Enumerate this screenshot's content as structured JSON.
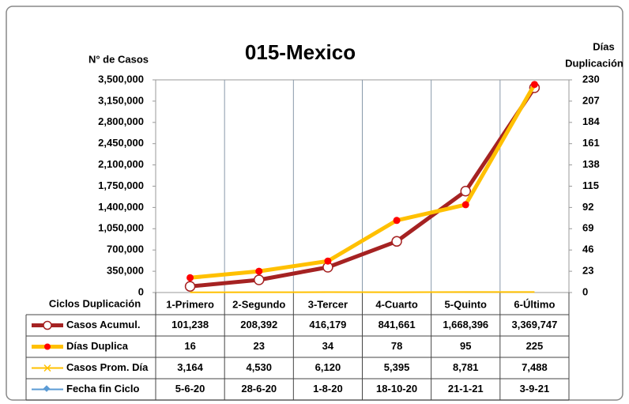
{
  "chart_data": {
    "type": "line",
    "title": "015-Mexico",
    "y_label": "N° de Casos",
    "y2_label": [
      "Días",
      "Duplicación"
    ],
    "table_header": "Ciclos Duplicación",
    "categories": [
      "1-Primero",
      "2-Segundo",
      "3-Tercer",
      "4-Cuarto",
      "5-Quinto",
      "6-Último"
    ],
    "ylim": [
      0,
      3500000
    ],
    "yticks": [
      0,
      {
        "value": 350000,
        "label": "350,000"
      },
      {
        "value": 700000,
        "label": "700,000"
      },
      {
        "value": 1050000,
        "label": "1,050,000"
      },
      {
        "value": 1400000,
        "label": "1,400,000"
      },
      {
        "value": 1750000,
        "label": "1,750,000"
      },
      {
        "value": 2100000,
        "label": "2,100,000"
      },
      {
        "value": 2450000,
        "label": "2,450,000"
      },
      {
        "value": 2800000,
        "label": "2,800,000"
      },
      {
        "value": 3150000,
        "label": "3,150,000"
      },
      {
        "value": 3500000,
        "label": "3,500,000"
      }
    ],
    "y2lim": [
      0,
      230
    ],
    "y2ticks": [
      0,
      23,
      46,
      69,
      92,
      115,
      138,
      161,
      184,
      207,
      230
    ],
    "series": [
      {
        "name": "Casos Acumul.",
        "color": "#a52222",
        "values": [
          101238,
          208392,
          416179,
          841661,
          1668396,
          3369747
        ],
        "value_labels": [
          "101,238",
          "208,392",
          "416,179",
          "841,661",
          "1,668,396",
          "3,369,747"
        ]
      },
      {
        "name": "Días Duplica",
        "color": "#ffc000",
        "axis": "y2",
        "values": [
          16,
          23,
          34,
          78,
          95,
          225
        ]
      },
      {
        "name": "Casos Prom. Día",
        "color": "#ffc000",
        "values": [
          3164,
          4530,
          6120,
          5395,
          8781,
          7488
        ],
        "value_labels": [
          "3,164",
          "4,530",
          "6,120",
          "5,395",
          "8,781",
          "7,488"
        ]
      },
      {
        "name": "Fecha fin Ciclo",
        "color": "#5b9bd5",
        "values": [
          "5-6-20",
          "28-6-20",
          "1-8-20",
          "18-10-20",
          "21-1-21",
          "3-9-21"
        ]
      }
    ]
  }
}
